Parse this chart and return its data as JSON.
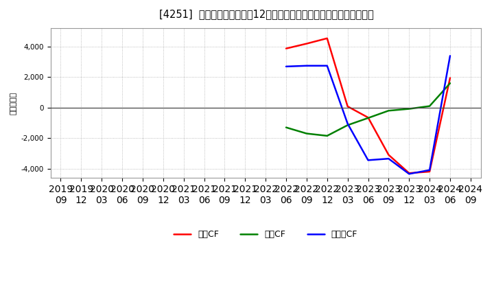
{
  "title": "[4251]  キャッシュフローの12か月移動合計の対前年同期増減額の推移",
  "ylabel": "（百万円）",
  "ylim": [
    -4600,
    5200
  ],
  "yticks": [
    -4000,
    -2000,
    0,
    2000,
    4000
  ],
  "series": {
    "営業CF": {
      "color": "#ff0000",
      "x": [
        "2022/06",
        "2022/09",
        "2022/12",
        "2023/03",
        "2023/06",
        "2023/09",
        "2023/12",
        "2024/03",
        "2024/06"
      ],
      "y": [
        3880,
        4200,
        4550,
        80,
        -650,
        -3100,
        -4300,
        -4200,
        1950
      ]
    },
    "投賄CF": {
      "color": "#008000",
      "x": [
        "2022/06",
        "2022/09",
        "2022/12",
        "2023/03",
        "2023/06",
        "2023/09",
        "2023/12",
        "2024/03",
        "2024/06"
      ],
      "y": [
        -1300,
        -1700,
        -1850,
        -1150,
        -680,
        -200,
        -80,
        100,
        1600
      ]
    },
    "フリーCF": {
      "color": "#0000ff",
      "x": [
        "2022/06",
        "2022/09",
        "2022/12",
        "2023/03",
        "2023/06",
        "2023/09",
        "2023/12",
        "2024/03",
        "2024/06"
      ],
      "y": [
        2700,
        2750,
        2750,
        -1050,
        -3450,
        -3350,
        -4350,
        -4100,
        3400
      ]
    }
  },
  "xticks": [
    "2019/09",
    "2019/12",
    "2020/03",
    "2020/06",
    "2020/09",
    "2020/12",
    "2021/03",
    "2021/06",
    "2021/09",
    "2021/12",
    "2022/03",
    "2022/06",
    "2022/09",
    "2022/12",
    "2023/03",
    "2023/06",
    "2023/09",
    "2023/12",
    "2024/03",
    "2024/06",
    "2024/09"
  ],
  "background_color": "#ffffff",
  "grid_color": "#aaaaaa",
  "title_fontsize": 10.5,
  "axis_fontsize": 7.5,
  "ylabel_fontsize": 8,
  "legend_fontsize": 9
}
